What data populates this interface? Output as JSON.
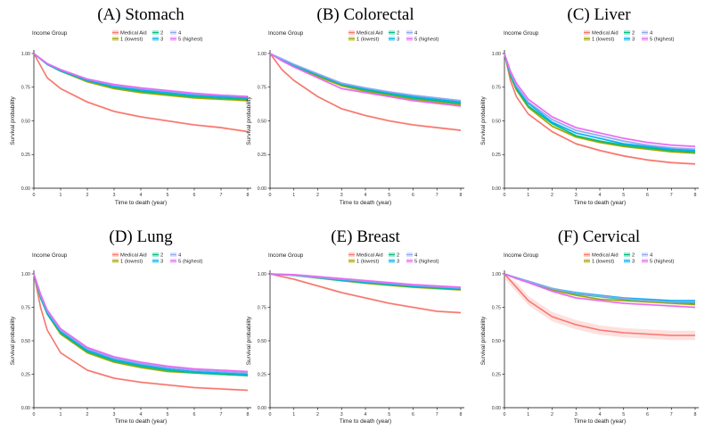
{
  "figure": {
    "legend_title": "Income Group"
  },
  "colors": {
    "Medical Aid": "#F8766D",
    "1 (lowest)": "#A3A500",
    "2": "#00BF7D",
    "3": "#00B0F6",
    "4": "#8FA8F0",
    "5 (highest)": "#E76BF3"
  },
  "chart_data": [
    {
      "type": "line",
      "title": "(A) Stomach",
      "xlabel": "Time to death (year)",
      "ylabel": "Survival probability",
      "xlim": [
        0,
        8
      ],
      "ylim": [
        0,
        1
      ],
      "x_ticks": [
        0,
        1,
        2,
        3,
        4,
        5,
        6,
        7,
        8
      ],
      "y_ticks": [
        "0.00",
        "0.25",
        "0.50",
        "0.75",
        "1.00"
      ],
      "x": [
        0,
        0.5,
        1,
        2,
        3,
        4,
        5,
        6,
        7,
        8
      ],
      "series": [
        {
          "name": "Medical Aid",
          "values": [
            1.0,
            0.82,
            0.74,
            0.64,
            0.57,
            0.53,
            0.5,
            0.47,
            0.45,
            0.42
          ]
        },
        {
          "name": "1 (lowest)",
          "values": [
            1.0,
            0.92,
            0.87,
            0.79,
            0.74,
            0.71,
            0.69,
            0.67,
            0.66,
            0.65
          ]
        },
        {
          "name": "2",
          "values": [
            1.0,
            0.92,
            0.87,
            0.8,
            0.75,
            0.72,
            0.7,
            0.68,
            0.67,
            0.66
          ]
        },
        {
          "name": "3",
          "values": [
            1.0,
            0.92,
            0.875,
            0.8,
            0.755,
            0.73,
            0.71,
            0.69,
            0.68,
            0.67
          ]
        },
        {
          "name": "4",
          "values": [
            1.0,
            0.925,
            0.88,
            0.81,
            0.765,
            0.74,
            0.72,
            0.7,
            0.69,
            0.68
          ]
        },
        {
          "name": "5 (highest)",
          "values": [
            1.0,
            0.925,
            0.88,
            0.81,
            0.77,
            0.745,
            0.725,
            0.705,
            0.69,
            0.68
          ]
        }
      ]
    },
    {
      "type": "line",
      "title": "(B) Colorectal",
      "xlabel": "Time to death (year)",
      "ylabel": "Survival probability",
      "xlim": [
        0,
        8
      ],
      "ylim": [
        0,
        1
      ],
      "x_ticks": [
        0,
        1,
        2,
        3,
        4,
        5,
        6,
        7,
        8
      ],
      "y_ticks": [
        "0.00",
        "0.25",
        "0.50",
        "0.75",
        "1.00"
      ],
      "x": [
        0,
        0.5,
        1,
        2,
        3,
        4,
        5,
        6,
        7,
        8
      ],
      "series": [
        {
          "name": "Medical Aid",
          "values": [
            1.0,
            0.88,
            0.8,
            0.68,
            0.59,
            0.54,
            0.5,
            0.47,
            0.45,
            0.43
          ]
        },
        {
          "name": "1 (lowest)",
          "values": [
            1.0,
            0.95,
            0.91,
            0.83,
            0.76,
            0.72,
            0.69,
            0.66,
            0.64,
            0.62
          ]
        },
        {
          "name": "2",
          "values": [
            1.0,
            0.95,
            0.91,
            0.84,
            0.77,
            0.73,
            0.7,
            0.67,
            0.65,
            0.63
          ]
        },
        {
          "name": "3",
          "values": [
            1.0,
            0.955,
            0.915,
            0.845,
            0.775,
            0.74,
            0.71,
            0.68,
            0.66,
            0.64
          ]
        },
        {
          "name": "4",
          "values": [
            1.0,
            0.96,
            0.92,
            0.85,
            0.78,
            0.745,
            0.715,
            0.69,
            0.67,
            0.65
          ]
        },
        {
          "name": "5 (highest)",
          "values": [
            1.0,
            0.945,
            0.9,
            0.82,
            0.74,
            0.71,
            0.68,
            0.65,
            0.63,
            0.61
          ]
        }
      ]
    },
    {
      "type": "line",
      "title": "(C) Liver",
      "xlabel": "Time to death (year)",
      "ylabel": "Survival probability",
      "xlim": [
        0,
        8
      ],
      "ylim": [
        0,
        1
      ],
      "x_ticks": [
        0,
        1,
        2,
        3,
        4,
        5,
        6,
        7,
        8
      ],
      "y_ticks": [
        "0.00",
        "0.25",
        "0.50",
        "0.75",
        "1.00"
      ],
      "x": [
        0,
        0.25,
        0.5,
        1,
        2,
        3,
        4,
        5,
        6,
        7,
        8
      ],
      "series": [
        {
          "name": "Medical Aid",
          "values": [
            1.0,
            0.8,
            0.68,
            0.55,
            0.42,
            0.33,
            0.28,
            0.24,
            0.21,
            0.19,
            0.18
          ]
        },
        {
          "name": "1 (lowest)",
          "values": [
            1.0,
            0.83,
            0.73,
            0.6,
            0.46,
            0.38,
            0.34,
            0.31,
            0.29,
            0.27,
            0.26
          ]
        },
        {
          "name": "2",
          "values": [
            1.0,
            0.84,
            0.74,
            0.61,
            0.48,
            0.39,
            0.35,
            0.32,
            0.3,
            0.28,
            0.27
          ]
        },
        {
          "name": "3",
          "values": [
            1.0,
            0.85,
            0.75,
            0.63,
            0.49,
            0.41,
            0.37,
            0.33,
            0.31,
            0.29,
            0.28
          ]
        },
        {
          "name": "4",
          "values": [
            1.0,
            0.86,
            0.76,
            0.64,
            0.51,
            0.43,
            0.39,
            0.35,
            0.32,
            0.3,
            0.29
          ]
        },
        {
          "name": "5 (highest)",
          "values": [
            1.0,
            0.87,
            0.78,
            0.66,
            0.53,
            0.45,
            0.41,
            0.37,
            0.34,
            0.32,
            0.31
          ]
        }
      ]
    },
    {
      "type": "line",
      "title": "(D) Lung",
      "xlabel": "Time to death (year)",
      "ylabel": "Survival probability",
      "xlim": [
        0,
        8
      ],
      "ylim": [
        0,
        1
      ],
      "x_ticks": [
        0,
        1,
        2,
        3,
        4,
        5,
        6,
        7,
        8
      ],
      "y_ticks": [
        "0.00",
        "0.25",
        "0.50",
        "0.75",
        "1.00"
      ],
      "x": [
        0,
        0.25,
        0.5,
        1,
        2,
        3,
        4,
        5,
        6,
        7,
        8
      ],
      "series": [
        {
          "name": "Medical Aid",
          "values": [
            1.0,
            0.75,
            0.58,
            0.41,
            0.28,
            0.22,
            0.19,
            0.17,
            0.15,
            0.14,
            0.13
          ]
        },
        {
          "name": "1 (lowest)",
          "values": [
            1.0,
            0.82,
            0.7,
            0.55,
            0.41,
            0.34,
            0.3,
            0.27,
            0.26,
            0.25,
            0.24
          ]
        },
        {
          "name": "2",
          "values": [
            1.0,
            0.82,
            0.7,
            0.56,
            0.42,
            0.35,
            0.31,
            0.28,
            0.26,
            0.25,
            0.24
          ]
        },
        {
          "name": "3",
          "values": [
            1.0,
            0.83,
            0.71,
            0.57,
            0.43,
            0.36,
            0.32,
            0.29,
            0.27,
            0.26,
            0.25
          ]
        },
        {
          "name": "4",
          "values": [
            1.0,
            0.84,
            0.72,
            0.58,
            0.44,
            0.37,
            0.33,
            0.3,
            0.28,
            0.27,
            0.26
          ]
        },
        {
          "name": "5 (highest)",
          "values": [
            1.0,
            0.85,
            0.73,
            0.59,
            0.45,
            0.38,
            0.34,
            0.31,
            0.29,
            0.28,
            0.27
          ]
        }
      ]
    },
    {
      "type": "line",
      "title": "(E) Breast",
      "xlabel": "Time to death (year)",
      "ylabel": "Survival probability",
      "xlim": [
        0,
        8
      ],
      "ylim": [
        0,
        1
      ],
      "x_ticks": [
        0,
        1,
        2,
        3,
        4,
        5,
        6,
        7,
        8
      ],
      "y_ticks": [
        "0.00",
        "0.25",
        "0.50",
        "0.75",
        "1.00"
      ],
      "x": [
        0,
        1,
        2,
        3,
        4,
        5,
        6,
        7,
        8
      ],
      "series": [
        {
          "name": "Medical Aid",
          "values": [
            1.0,
            0.96,
            0.91,
            0.86,
            0.82,
            0.78,
            0.75,
            0.72,
            0.71
          ]
        },
        {
          "name": "1 (lowest)",
          "values": [
            1.0,
            0.99,
            0.97,
            0.95,
            0.93,
            0.915,
            0.9,
            0.89,
            0.88
          ]
        },
        {
          "name": "2",
          "values": [
            1.0,
            0.99,
            0.97,
            0.95,
            0.935,
            0.92,
            0.905,
            0.895,
            0.885
          ]
        },
        {
          "name": "3",
          "values": [
            1.0,
            0.99,
            0.975,
            0.955,
            0.94,
            0.925,
            0.91,
            0.9,
            0.89
          ]
        },
        {
          "name": "4",
          "values": [
            1.0,
            0.99,
            0.975,
            0.96,
            0.945,
            0.93,
            0.915,
            0.905,
            0.895
          ]
        },
        {
          "name": "5 (highest)",
          "values": [
            1.0,
            0.995,
            0.98,
            0.965,
            0.95,
            0.935,
            0.92,
            0.91,
            0.9
          ]
        }
      ]
    },
    {
      "type": "line",
      "title": "(F) Cervical",
      "xlabel": "Time to death (year)",
      "ylabel": "Survival probability",
      "xlim": [
        0,
        8
      ],
      "ylim": [
        0,
        1
      ],
      "x_ticks": [
        0,
        1,
        2,
        3,
        4,
        5,
        6,
        7,
        8
      ],
      "y_ticks": [
        "0.00",
        "0.25",
        "0.50",
        "0.75",
        "1.00"
      ],
      "x": [
        0,
        0.5,
        1,
        2,
        3,
        4,
        5,
        6,
        7,
        8
      ],
      "series": [
        {
          "name": "Medical Aid",
          "values": [
            1.0,
            0.9,
            0.8,
            0.68,
            0.62,
            0.58,
            0.56,
            0.55,
            0.54,
            0.54
          ]
        },
        {
          "name": "1 (lowest)",
          "values": [
            1.0,
            0.97,
            0.94,
            0.88,
            0.84,
            0.81,
            0.8,
            0.79,
            0.78,
            0.77
          ]
        },
        {
          "name": "2",
          "values": [
            1.0,
            0.97,
            0.94,
            0.89,
            0.85,
            0.83,
            0.81,
            0.8,
            0.79,
            0.78
          ]
        },
        {
          "name": "3",
          "values": [
            1.0,
            0.97,
            0.945,
            0.89,
            0.86,
            0.84,
            0.82,
            0.81,
            0.8,
            0.8
          ]
        },
        {
          "name": "4",
          "values": [
            1.0,
            0.97,
            0.945,
            0.89,
            0.855,
            0.835,
            0.815,
            0.8,
            0.79,
            0.79
          ]
        },
        {
          "name": "5 (highest)",
          "values": [
            1.0,
            0.965,
            0.935,
            0.87,
            0.82,
            0.8,
            0.78,
            0.77,
            0.76,
            0.75
          ]
        }
      ]
    }
  ]
}
